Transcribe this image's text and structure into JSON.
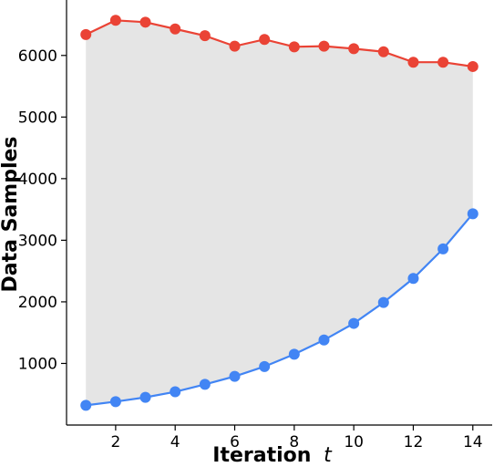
{
  "chart_data": {
    "type": "line",
    "title": "",
    "xlabel": "Iteration",
    "xlabel_variable": "t",
    "ylabel": "Data Samples",
    "xlim": [
      0.35,
      14.65
    ],
    "ylim": [
      0,
      6900
    ],
    "xticks": [
      2,
      4,
      6,
      8,
      10,
      12,
      14
    ],
    "yticks": [
      1000,
      2000,
      3000,
      4000,
      5000,
      6000
    ],
    "grid": false,
    "legend": "none",
    "fill_between_series": true,
    "fill_color": "#e5e5e5",
    "x": [
      1,
      2,
      3,
      4,
      5,
      6,
      7,
      8,
      9,
      10,
      11,
      12,
      13,
      14
    ],
    "series": [
      {
        "color": "#ea4335",
        "values": [
          6340,
          6570,
          6540,
          6430,
          6320,
          6150,
          6260,
          6140,
          6150,
          6110,
          6060,
          5890,
          5890,
          5820
        ]
      },
      {
        "color": "#4285f4",
        "values": [
          320,
          380,
          450,
          540,
          660,
          790,
          950,
          1150,
          1380,
          1650,
          1990,
          2380,
          2860,
          3430
        ]
      }
    ]
  }
}
